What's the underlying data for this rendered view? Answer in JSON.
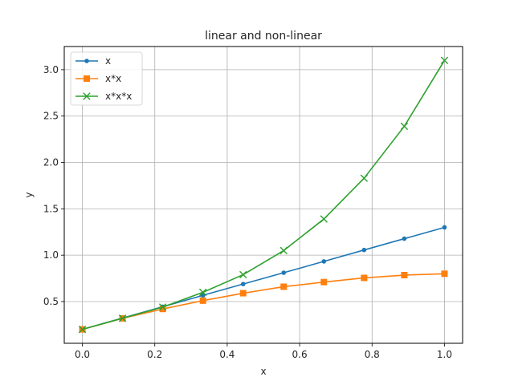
{
  "chart_data": {
    "type": "line",
    "title": "linear and non-linear",
    "xlabel": "x",
    "ylabel": "y",
    "xlim": [
      -0.05,
      1.05
    ],
    "ylim": [
      0.05,
      3.25
    ],
    "xticks": [
      0.0,
      0.2,
      0.4,
      0.6,
      0.8,
      1.0
    ],
    "xtick_labels": [
      "0.0",
      "0.2",
      "0.4",
      "0.6",
      "0.8",
      "1.0"
    ],
    "yticks": [
      0.5,
      1.0,
      1.5,
      2.0,
      2.5,
      3.0
    ],
    "ytick_labels": [
      "0.5",
      "1.0",
      "1.5",
      "2.0",
      "2.5",
      "3.0"
    ],
    "grid": true,
    "legend_position": "top-left",
    "x": [
      0.0,
      0.111,
      0.222,
      0.333,
      0.444,
      0.556,
      0.667,
      0.778,
      0.889,
      1.0
    ],
    "series": [
      {
        "name": "x",
        "color": "#1f77b4",
        "marker": "dot",
        "values": [
          0.2,
          0.322,
          0.444,
          0.567,
          0.689,
          0.811,
          0.933,
          1.056,
          1.178,
          1.3
        ]
      },
      {
        "name": "x*x",
        "color": "#ff7f0e",
        "marker": "square",
        "values": [
          0.2,
          0.319,
          0.42,
          0.51,
          0.59,
          0.66,
          0.71,
          0.755,
          0.785,
          0.8
        ]
      },
      {
        "name": "x*x*x",
        "color": "#2ca02c",
        "marker": "x",
        "values": [
          0.2,
          0.32,
          0.44,
          0.6,
          0.79,
          1.05,
          1.39,
          1.83,
          2.39,
          3.1
        ]
      }
    ]
  }
}
